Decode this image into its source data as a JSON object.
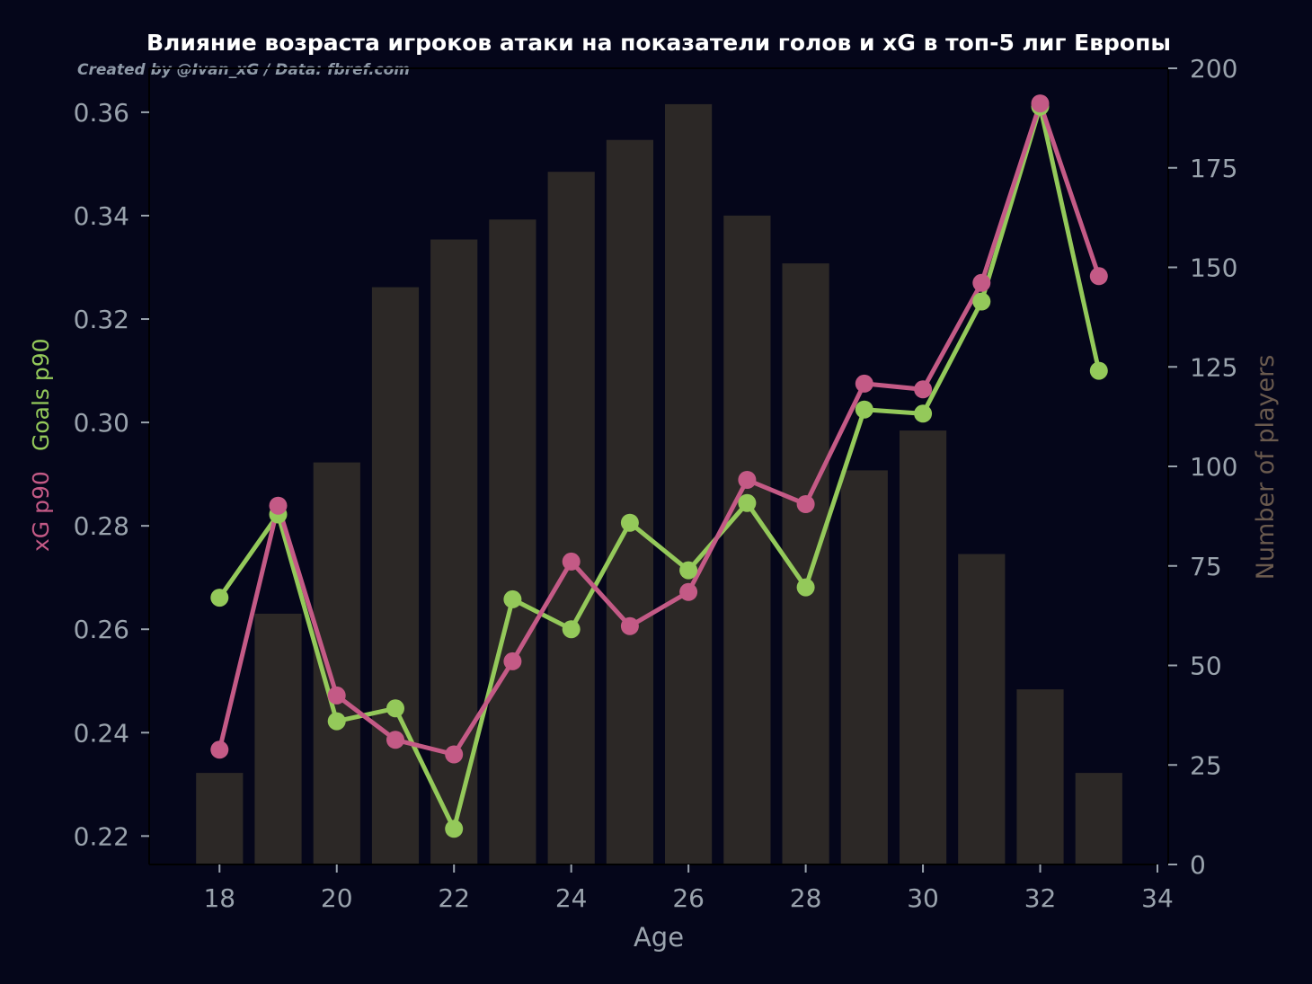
{
  "colors": {
    "background": "#05061a",
    "bars": "#2c2826",
    "xg": "#c45a86",
    "goals": "#94c95a",
    "ticks": "#9aa3ad",
    "right_label": "#6a5a4e",
    "axis_line": "#000000"
  },
  "chart_data": {
    "type": "bar",
    "title": "Влияние возраста игроков атаки на показатели голов и xG в топ-5 лиг Европы",
    "subtitle": "Created by @Ivan_xG / Data: fbref.com",
    "xlabel": "Age",
    "ylabel_left_xg": "xG p90",
    "ylabel_left_goals": "Goals p90",
    "ylabel_right": "Number of players",
    "x": [
      18,
      19,
      20,
      21,
      22,
      23,
      24,
      25,
      26,
      27,
      28,
      29,
      30,
      31,
      32,
      33
    ],
    "players": [
      23,
      63,
      101,
      145,
      157,
      162,
      174,
      182,
      191,
      163,
      151,
      99,
      109,
      78,
      44,
      23
    ],
    "series": [
      {
        "name": "xG p90",
        "values": [
          0.2367,
          0.2839,
          0.2472,
          0.2386,
          0.2358,
          0.2538,
          0.2731,
          0.2606,
          0.2672,
          0.2889,
          0.2842,
          0.3075,
          0.3064,
          0.327,
          0.3617,
          0.3283
        ]
      },
      {
        "name": "Goals p90",
        "values": [
          0.2661,
          0.2822,
          0.2422,
          0.2447,
          0.2214,
          0.2658,
          0.26,
          0.2806,
          0.2714,
          0.2844,
          0.2681,
          0.3025,
          0.3017,
          0.3234,
          0.3611,
          0.31
        ]
      }
    ],
    "xlim": [
      16.8,
      34.0
    ],
    "ylim_left": [
      0.2145,
      0.3685
    ],
    "ylim_right": [
      0,
      200
    ],
    "x_ticks": [
      "18",
      "20",
      "22",
      "24",
      "26",
      "28",
      "30",
      "32",
      "34"
    ],
    "y_left_ticks": [
      "0.22",
      "0.24",
      "0.26",
      "0.28",
      "0.30",
      "0.32",
      "0.34",
      "0.36"
    ],
    "y_right_ticks": [
      "0",
      "25",
      "50",
      "75",
      "100",
      "125",
      "150",
      "175",
      "200"
    ],
    "grid": false,
    "legend": "none"
  }
}
